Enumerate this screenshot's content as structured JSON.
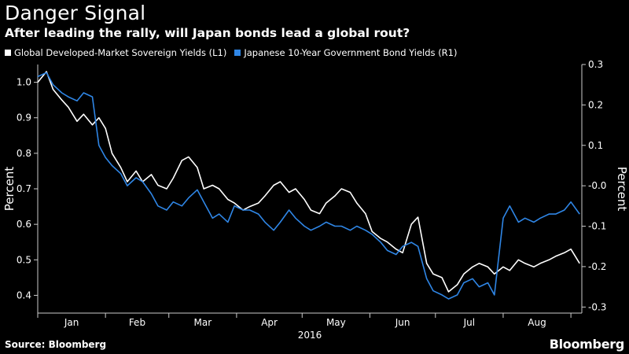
{
  "header": {
    "title": "Danger Signal",
    "subtitle": "After leading the rally, will Japan bonds lead a global rout?"
  },
  "footer": {
    "source": "Source: Bloomberg",
    "brand": "Bloomberg"
  },
  "colors": {
    "background": "#000000",
    "series_left": "#ffffff",
    "series_right": "#2f86e6",
    "axis": "#cccccc"
  },
  "chart_data": {
    "type": "line",
    "title": "Danger Signal",
    "subtitle": "After leading the rally, will Japan bonds lead a global rout?",
    "xlabel": "2016",
    "ylabel_left": "Percent",
    "ylabel_right": "Percent",
    "x_tick_labels": [
      "Jan",
      "Feb",
      "Mar",
      "Apr",
      "May",
      "Jun",
      "Jul",
      "Aug"
    ],
    "x_range": [
      "2016-01-01",
      "2016-09-06"
    ],
    "ylim_left": [
      0.35,
      1.05
    ],
    "ylim_right": [
      -0.315,
      0.3
    ],
    "yticks_left": [
      0.4,
      0.5,
      0.6,
      0.7,
      0.8,
      0.9,
      1.0
    ],
    "ytick_labels_left": [
      "0.4",
      "0.5",
      "0.6",
      "0.7",
      "0.8",
      "0.9",
      "1.0"
    ],
    "yticks_right": [
      -0.3,
      -0.2,
      -0.1,
      0.0,
      0.1,
      0.2,
      0.3
    ],
    "ytick_labels_right": [
      "-0.3",
      "-0.2",
      "-0.1",
      "-0.0",
      "0.1",
      "0.2",
      "0.3"
    ],
    "grid": false,
    "legend_position": "top-left",
    "series": [
      {
        "name": "Global Developed-Market Sovereign Yields (L1)",
        "axis": "left",
        "color": "#ffffff",
        "points": [
          [
            "2016-01-01",
            1.0
          ],
          [
            "2016-01-05",
            1.03
          ],
          [
            "2016-01-08",
            0.98
          ],
          [
            "2016-01-12",
            0.95
          ],
          [
            "2016-01-15",
            0.93
          ],
          [
            "2016-01-19",
            0.89
          ],
          [
            "2016-01-22",
            0.91
          ],
          [
            "2016-01-26",
            0.88
          ],
          [
            "2016-01-29",
            0.9
          ],
          [
            "2016-02-01",
            0.87
          ],
          [
            "2016-02-04",
            0.8
          ],
          [
            "2016-02-08",
            0.76
          ],
          [
            "2016-02-11",
            0.72
          ],
          [
            "2016-02-15",
            0.75
          ],
          [
            "2016-02-18",
            0.72
          ],
          [
            "2016-02-22",
            0.74
          ],
          [
            "2016-02-25",
            0.71
          ],
          [
            "2016-02-29",
            0.7
          ],
          [
            "2016-03-03",
            0.73
          ],
          [
            "2016-03-07",
            0.78
          ],
          [
            "2016-03-10",
            0.79
          ],
          [
            "2016-03-14",
            0.76
          ],
          [
            "2016-03-17",
            0.7
          ],
          [
            "2016-03-21",
            0.71
          ],
          [
            "2016-03-24",
            0.7
          ],
          [
            "2016-03-28",
            0.67
          ],
          [
            "2016-03-31",
            0.66
          ],
          [
            "2016-04-04",
            0.64
          ],
          [
            "2016-04-07",
            0.65
          ],
          [
            "2016-04-11",
            0.66
          ],
          [
            "2016-04-14",
            0.68
          ],
          [
            "2016-04-18",
            0.71
          ],
          [
            "2016-04-21",
            0.72
          ],
          [
            "2016-04-25",
            0.69
          ],
          [
            "2016-04-28",
            0.7
          ],
          [
            "2016-05-02",
            0.67
          ],
          [
            "2016-05-05",
            0.64
          ],
          [
            "2016-05-09",
            0.63
          ],
          [
            "2016-05-12",
            0.66
          ],
          [
            "2016-05-16",
            0.68
          ],
          [
            "2016-05-19",
            0.7
          ],
          [
            "2016-05-23",
            0.69
          ],
          [
            "2016-05-26",
            0.66
          ],
          [
            "2016-05-30",
            0.63
          ],
          [
            "2016-06-02",
            0.58
          ],
          [
            "2016-06-06",
            0.56
          ],
          [
            "2016-06-09",
            0.55
          ],
          [
            "2016-06-13",
            0.53
          ],
          [
            "2016-06-16",
            0.52
          ],
          [
            "2016-06-20",
            0.6
          ],
          [
            "2016-06-23",
            0.62
          ],
          [
            "2016-06-27",
            0.49
          ],
          [
            "2016-06-30",
            0.46
          ],
          [
            "2016-07-04",
            0.45
          ],
          [
            "2016-07-07",
            0.41
          ],
          [
            "2016-07-11",
            0.43
          ],
          [
            "2016-07-14",
            0.46
          ],
          [
            "2016-07-18",
            0.48
          ],
          [
            "2016-07-21",
            0.49
          ],
          [
            "2016-07-25",
            0.48
          ],
          [
            "2016-07-28",
            0.46
          ],
          [
            "2016-08-01",
            0.48
          ],
          [
            "2016-08-04",
            0.47
          ],
          [
            "2016-08-08",
            0.5
          ],
          [
            "2016-08-11",
            0.49
          ],
          [
            "2016-08-15",
            0.48
          ],
          [
            "2016-08-18",
            0.49
          ],
          [
            "2016-08-22",
            0.5
          ],
          [
            "2016-08-25",
            0.51
          ],
          [
            "2016-08-29",
            0.52
          ],
          [
            "2016-09-01",
            0.53
          ],
          [
            "2016-09-05",
            0.49
          ]
        ]
      },
      {
        "name": "Japanese 10-Year Government Bond Yields (R1)",
        "axis": "right",
        "color": "#2f86e6",
        "points": [
          [
            "2016-01-01",
            0.27
          ],
          [
            "2016-01-05",
            0.28
          ],
          [
            "2016-01-08",
            0.25
          ],
          [
            "2016-01-12",
            0.23
          ],
          [
            "2016-01-15",
            0.22
          ],
          [
            "2016-01-19",
            0.21
          ],
          [
            "2016-01-22",
            0.23
          ],
          [
            "2016-01-26",
            0.22
          ],
          [
            "2016-01-29",
            0.1
          ],
          [
            "2016-02-01",
            0.07
          ],
          [
            "2016-02-04",
            0.05
          ],
          [
            "2016-02-08",
            0.03
          ],
          [
            "2016-02-11",
            0.0
          ],
          [
            "2016-02-15",
            0.02
          ],
          [
            "2016-02-18",
            0.01
          ],
          [
            "2016-02-22",
            -0.02
          ],
          [
            "2016-02-25",
            -0.05
          ],
          [
            "2016-02-29",
            -0.06
          ],
          [
            "2016-03-03",
            -0.04
          ],
          [
            "2016-03-07",
            -0.05
          ],
          [
            "2016-03-10",
            -0.03
          ],
          [
            "2016-03-14",
            -0.01
          ],
          [
            "2016-03-17",
            -0.04
          ],
          [
            "2016-03-21",
            -0.08
          ],
          [
            "2016-03-24",
            -0.07
          ],
          [
            "2016-03-28",
            -0.09
          ],
          [
            "2016-03-31",
            -0.05
          ],
          [
            "2016-04-04",
            -0.06
          ],
          [
            "2016-04-07",
            -0.06
          ],
          [
            "2016-04-11",
            -0.07
          ],
          [
            "2016-04-14",
            -0.09
          ],
          [
            "2016-04-18",
            -0.11
          ],
          [
            "2016-04-21",
            -0.09
          ],
          [
            "2016-04-25",
            -0.06
          ],
          [
            "2016-04-28",
            -0.08
          ],
          [
            "2016-05-02",
            -0.1
          ],
          [
            "2016-05-05",
            -0.11
          ],
          [
            "2016-05-09",
            -0.1
          ],
          [
            "2016-05-12",
            -0.09
          ],
          [
            "2016-05-16",
            -0.1
          ],
          [
            "2016-05-19",
            -0.1
          ],
          [
            "2016-05-23",
            -0.11
          ],
          [
            "2016-05-26",
            -0.1
          ],
          [
            "2016-05-30",
            -0.11
          ],
          [
            "2016-06-02",
            -0.12
          ],
          [
            "2016-06-06",
            -0.14
          ],
          [
            "2016-06-09",
            -0.16
          ],
          [
            "2016-06-13",
            -0.17
          ],
          [
            "2016-06-16",
            -0.15
          ],
          [
            "2016-06-20",
            -0.14
          ],
          [
            "2016-06-23",
            -0.15
          ],
          [
            "2016-06-27",
            -0.23
          ],
          [
            "2016-06-30",
            -0.26
          ],
          [
            "2016-07-04",
            -0.27
          ],
          [
            "2016-07-07",
            -0.28
          ],
          [
            "2016-07-11",
            -0.27
          ],
          [
            "2016-07-14",
            -0.24
          ],
          [
            "2016-07-18",
            -0.23
          ],
          [
            "2016-07-21",
            -0.25
          ],
          [
            "2016-07-25",
            -0.24
          ],
          [
            "2016-07-28",
            -0.27
          ],
          [
            "2016-08-01",
            -0.08
          ],
          [
            "2016-08-04",
            -0.05
          ],
          [
            "2016-08-08",
            -0.09
          ],
          [
            "2016-08-11",
            -0.08
          ],
          [
            "2016-08-15",
            -0.09
          ],
          [
            "2016-08-18",
            -0.08
          ],
          [
            "2016-08-22",
            -0.07
          ],
          [
            "2016-08-25",
            -0.07
          ],
          [
            "2016-08-29",
            -0.06
          ],
          [
            "2016-09-01",
            -0.04
          ],
          [
            "2016-09-05",
            -0.07
          ]
        ]
      }
    ]
  }
}
